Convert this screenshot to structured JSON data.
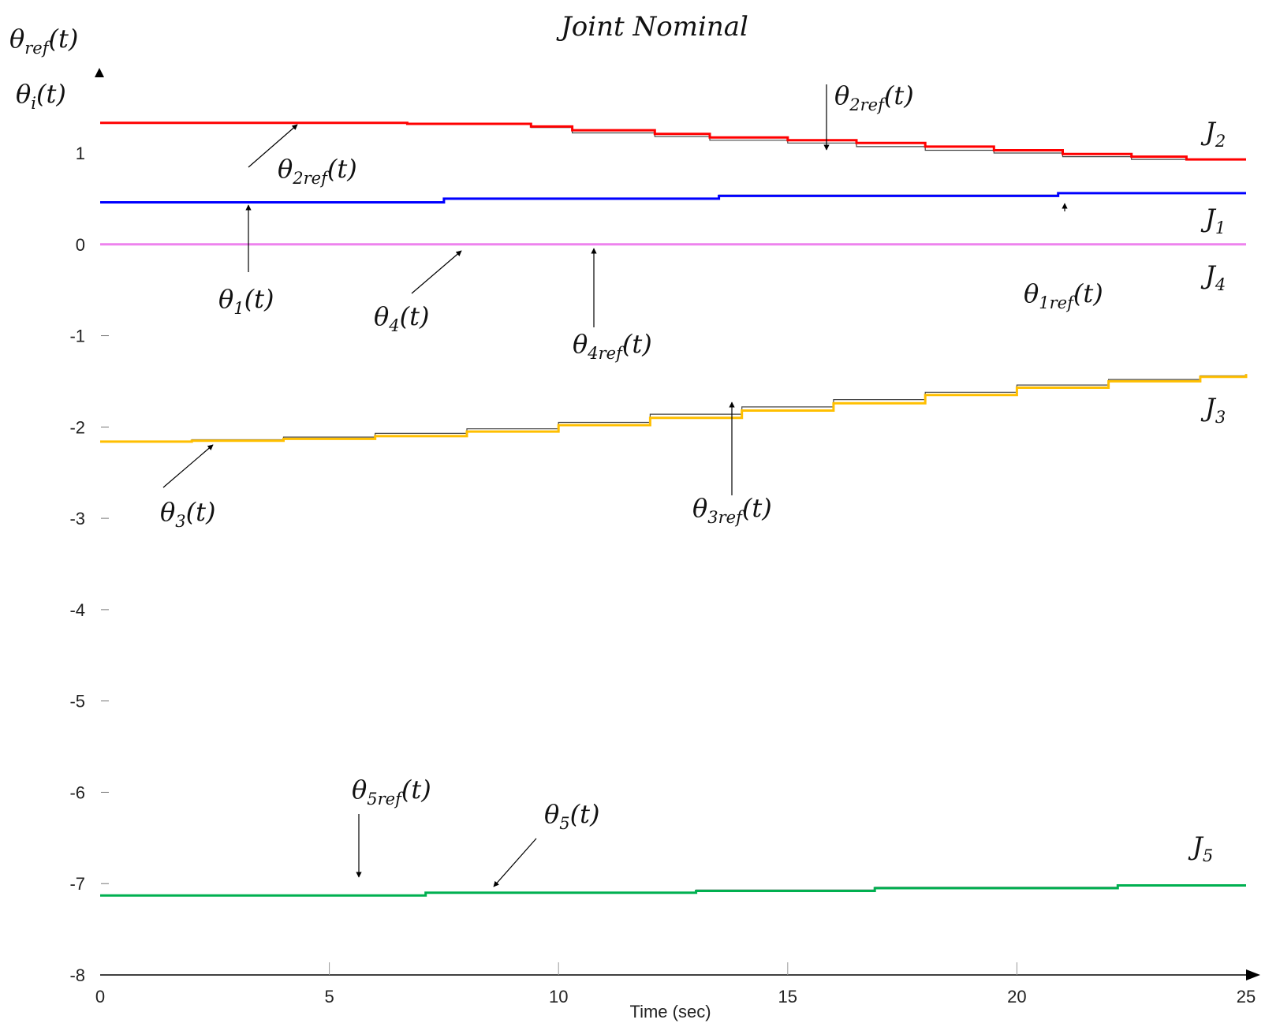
{
  "chart_data": {
    "type": "line",
    "title": "Joint Nominal",
    "xlabel": "Time (sec)",
    "ylabel_top": "θref(t)",
    "ylabel_bottom": "θi(t)",
    "xlim": [
      0,
      25
    ],
    "ylim": [
      -8,
      1.7
    ],
    "xticks": [
      "0",
      "5",
      "10",
      "15",
      "20",
      "25"
    ],
    "yticks": [
      "1",
      "0",
      "-1",
      "-2",
      "-3",
      "-4",
      "-5",
      "-6",
      "-7",
      "-8"
    ],
    "series": [
      {
        "name": "J2",
        "label": "J",
        "label_sub": "2",
        "color": "#ff0000",
        "x": [
          0,
          6.7,
          9.4,
          10.3,
          12.1,
          13.3,
          15,
          16.5,
          18,
          19.5,
          21,
          22.5,
          23.7,
          25
        ],
        "y": [
          1.33,
          1.32,
          1.29,
          1.25,
          1.21,
          1.17,
          1.14,
          1.11,
          1.07,
          1.03,
          0.99,
          0.96,
          0.93,
          0.93
        ],
        "ref_y": [
          1.33,
          1.32,
          1.28,
          1.22,
          1.18,
          1.14,
          1.11,
          1.07,
          1.03,
          1.0,
          0.96,
          0.93,
          0.93,
          0.93
        ]
      },
      {
        "name": "J1",
        "label": "J",
        "label_sub": "1",
        "color": "#0000ff",
        "x": [
          0,
          7.5,
          13.5,
          20.9,
          25
        ],
        "y": [
          0.46,
          0.5,
          0.53,
          0.56,
          0.56
        ],
        "ref_y": [
          0.46,
          0.5,
          0.54,
          0.56,
          0.56
        ]
      },
      {
        "name": "J4",
        "label": "J",
        "label_sub": "4",
        "color": "#ee82ee",
        "x": [
          0,
          25
        ],
        "y": [
          0.0,
          0.0
        ],
        "ref_y": [
          0.0,
          0.0
        ]
      },
      {
        "name": "J3",
        "label": "J",
        "label_sub": "3",
        "color": "#ffbf00",
        "x": [
          0,
          2,
          4,
          6,
          8,
          10,
          12,
          14,
          16,
          18,
          20,
          22,
          24,
          25
        ],
        "y": [
          -2.16,
          -2.15,
          -2.13,
          -2.1,
          -2.05,
          -1.98,
          -1.9,
          -1.82,
          -1.74,
          -1.65,
          -1.57,
          -1.5,
          -1.45,
          -1.42
        ],
        "ref_y": [
          -2.16,
          -2.14,
          -2.11,
          -2.07,
          -2.02,
          -1.95,
          -1.86,
          -1.78,
          -1.7,
          -1.62,
          -1.54,
          -1.48,
          -1.44,
          -1.42
        ]
      },
      {
        "name": "J5",
        "label": "J",
        "label_sub": "5",
        "color": "#00b050",
        "x": [
          0,
          7.1,
          13,
          16.9,
          22.2,
          25
        ],
        "y": [
          -7.13,
          -7.1,
          -7.08,
          -7.05,
          -7.02,
          -7.02
        ],
        "ref_y": [
          -7.13,
          -7.1,
          -7.07,
          -7.04,
          -7.02,
          -7.02
        ]
      }
    ],
    "ref_color": "#444444",
    "annotations": [
      {
        "text": "θ",
        "sub": "2ref",
        "suffix": "(t)"
      },
      {
        "text": "θ",
        "sub": "2ref",
        "suffix": "(t)"
      },
      {
        "text": "θ",
        "sub": "1",
        "suffix": "(t)"
      },
      {
        "text": "θ",
        "sub": "4",
        "suffix": "(t)"
      },
      {
        "text": "θ",
        "sub": "4ref",
        "suffix": "(t)"
      },
      {
        "text": "θ",
        "sub": "1ref",
        "suffix": "(t)"
      },
      {
        "text": "θ",
        "sub": "3",
        "suffix": "(t)"
      },
      {
        "text": "θ",
        "sub": "3ref",
        "suffix": "(t)"
      },
      {
        "text": "θ",
        "sub": "5ref",
        "suffix": "(t)"
      },
      {
        "text": "θ",
        "sub": "5",
        "suffix": "(t)"
      }
    ]
  }
}
